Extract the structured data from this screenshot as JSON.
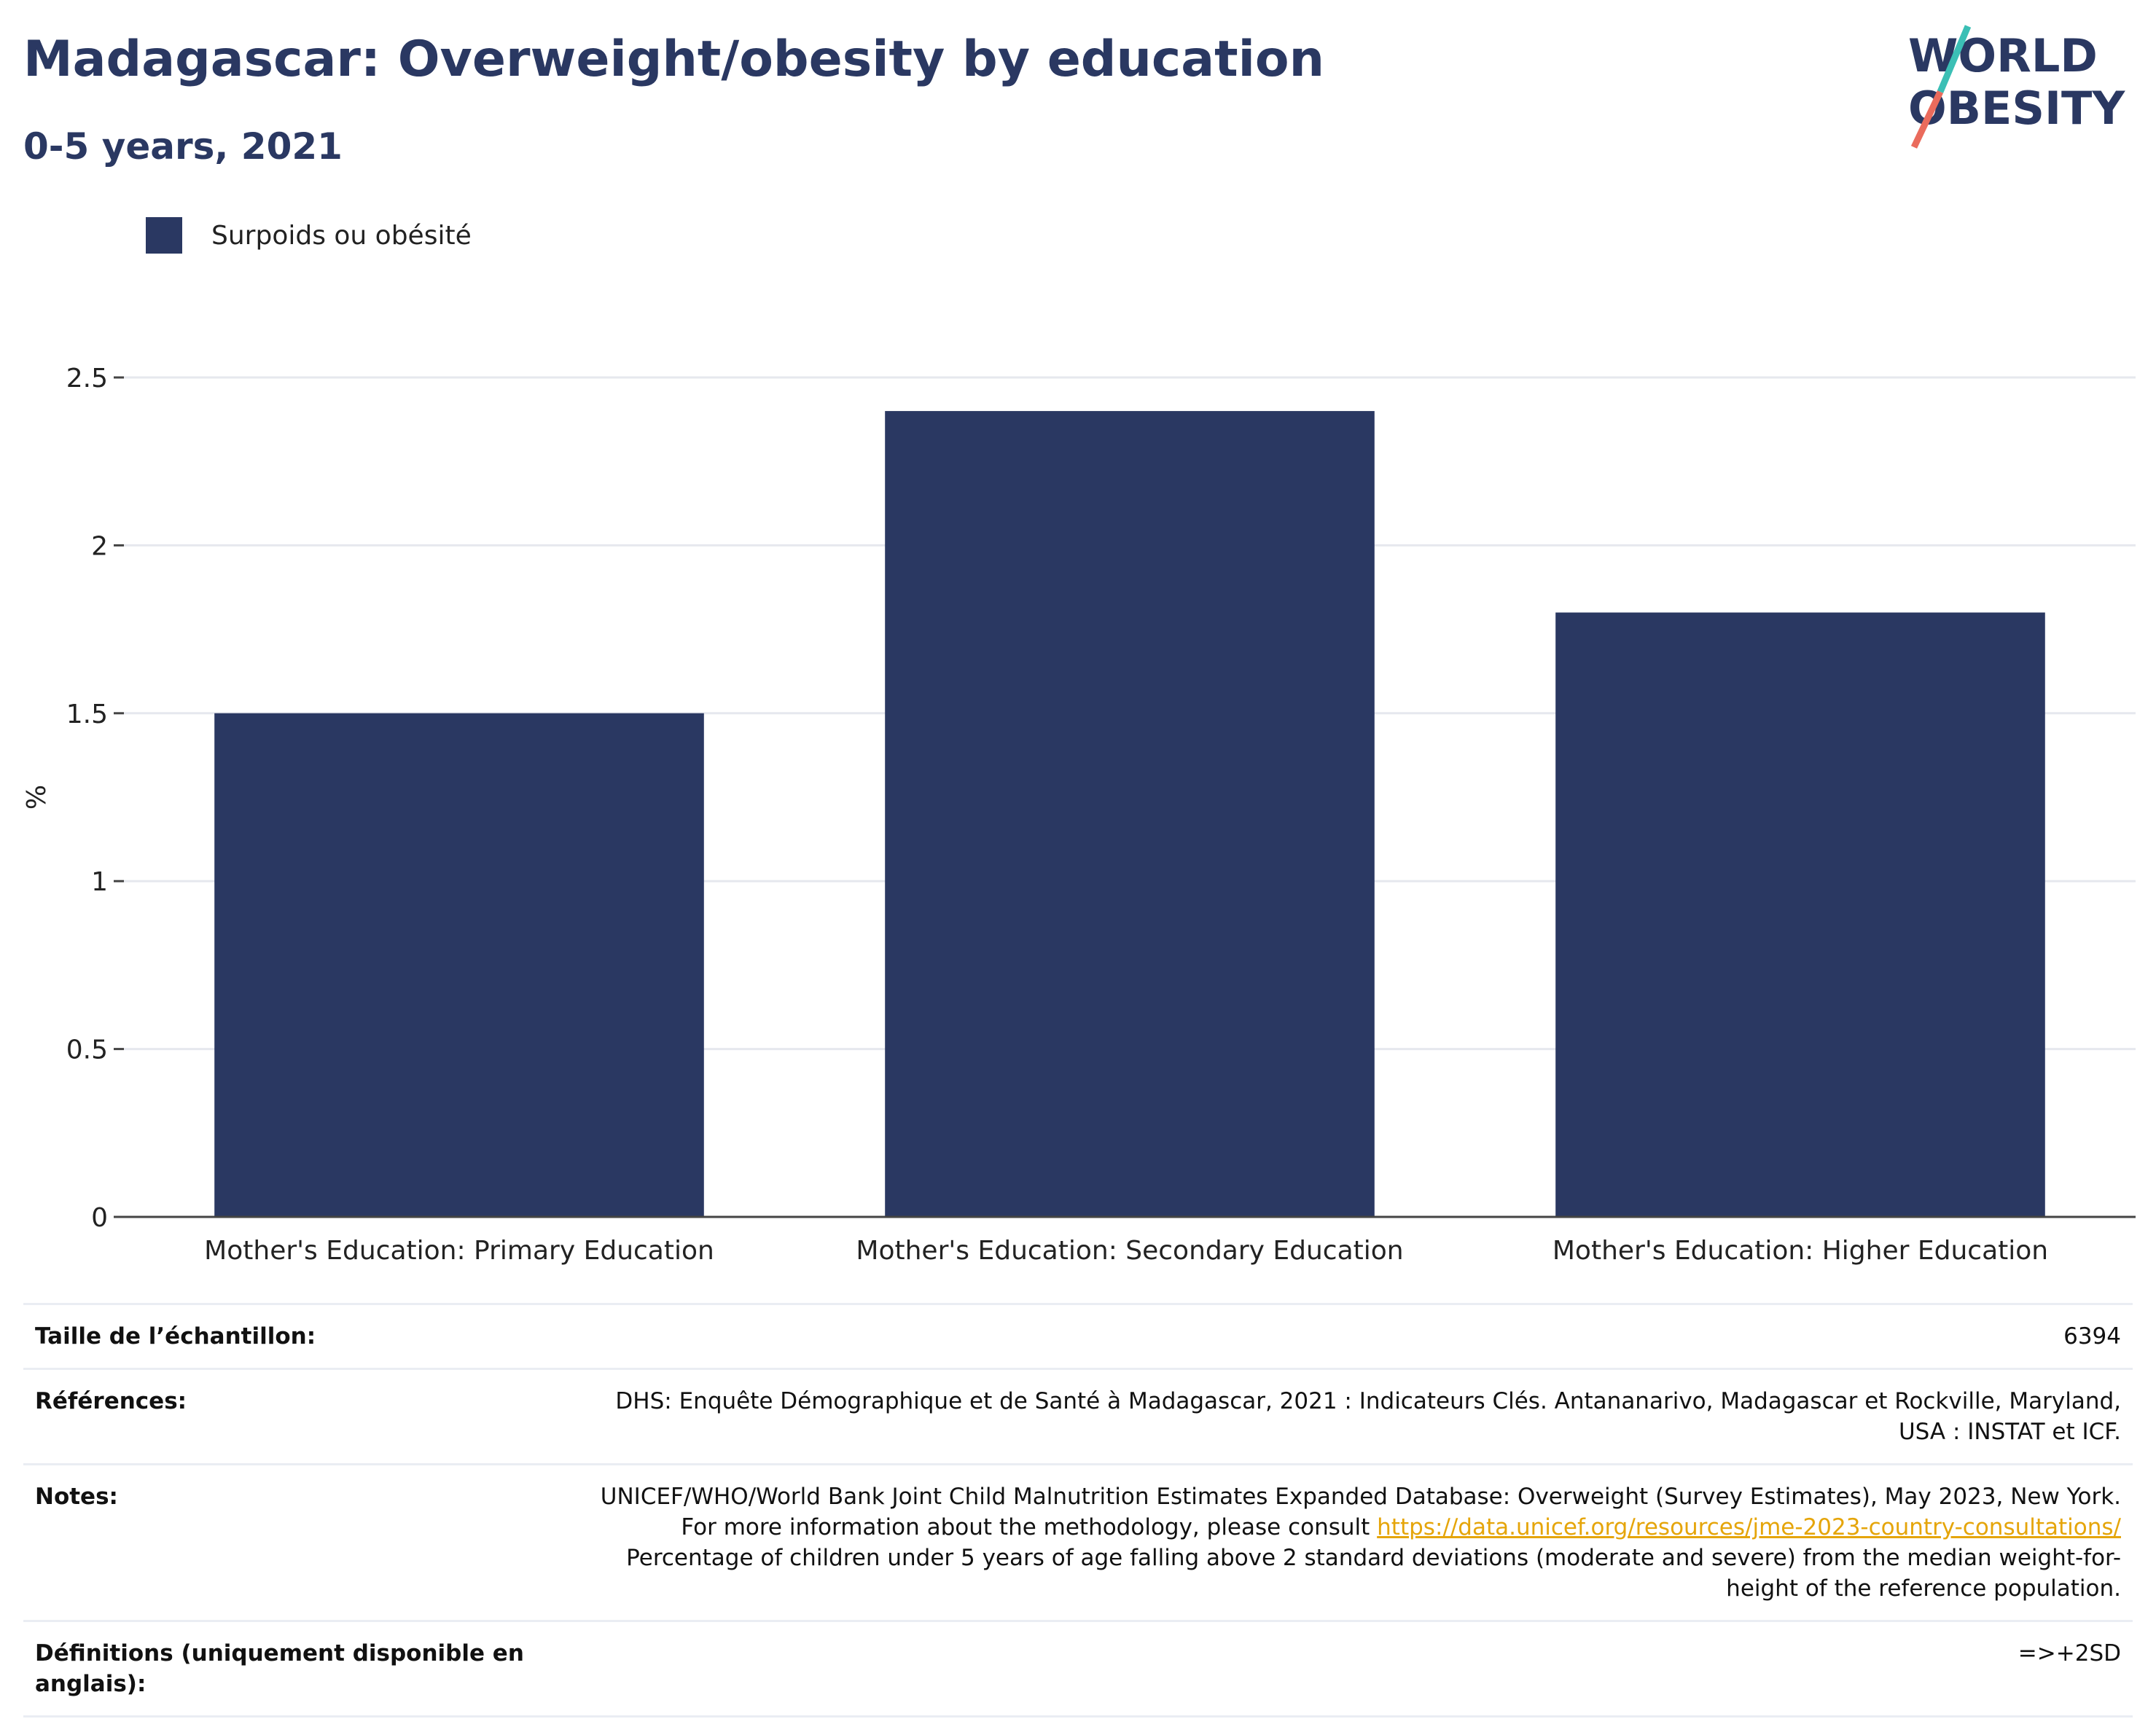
{
  "header": {
    "title": "Madagascar: Overweight/obesity by education",
    "subtitle": "0-5 years, 2021"
  },
  "logo": {
    "line1": "WORLD",
    "line2": "OBESITY",
    "colors": {
      "text": "#2a3862",
      "teal": "#3bbfb5",
      "coral": "#ea6b5c"
    }
  },
  "legend": {
    "label": "Surpoids ou obésité",
    "color": "#2a3862"
  },
  "chart_data": {
    "type": "bar",
    "categories": [
      "Mother's Education: Primary Education",
      "Mother's Education: Secondary Education",
      "Mother's Education: Higher Education"
    ],
    "series": [
      {
        "name": "Surpoids ou obésité",
        "values": [
          1.5,
          2.4,
          1.8
        ],
        "color": "#2a3862"
      }
    ],
    "ylabel": "%",
    "ylim": [
      0,
      2.5
    ],
    "yticks": [
      0,
      0.5,
      1,
      1.5,
      2,
      2.5
    ],
    "ytick_labels": [
      "0",
      "0.5",
      "1",
      "1.5",
      "2",
      "2.5"
    ],
    "grid": true,
    "legend_position": "top-left"
  },
  "meta": {
    "sample_size": {
      "label": "Taille de l’échantillon:",
      "value": "6394"
    },
    "references": {
      "label": "Références:",
      "value": "DHS: Enquête Démographique et de Santé à Madagascar, 2021 : Indicateurs Clés. Antananarivo, Madagascar et Rockville, Maryland, USA : INSTAT et ICF."
    },
    "notes": {
      "label": "Notes:",
      "text_before": "UNICEF/WHO/World Bank Joint Child Malnutrition Estimates Expanded Database: Overweight (Survey Estimates), May 2023, New York. For more information about the methodology, please consult ",
      "link": "https://data.unicef.org/resources/jme-2023-country-consultations/",
      "text_after": " Percentage of children under 5 years of age falling above 2 standard deviations (moderate and severe) from the median weight-for-height of the reference population."
    },
    "definitions": {
      "label": "Définitions (uniquement disponible en anglais):",
      "value": "=>+2SD"
    }
  }
}
